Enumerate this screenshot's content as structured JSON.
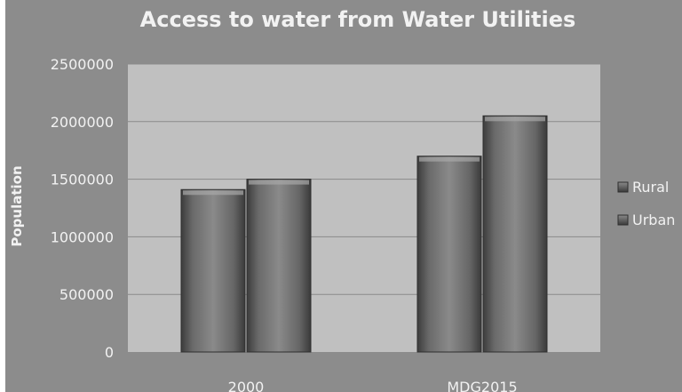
{
  "chart_data": {
    "type": "bar",
    "title": "Access to water from Water Utilities",
    "xlabel": "",
    "ylabel": "Population",
    "categories": [
      "2000",
      "MDG2015"
    ],
    "series": [
      {
        "name": "Rural",
        "values": [
          1410000,
          1700000
        ]
      },
      {
        "name": "Urban",
        "values": [
          1500000,
          2050000
        ]
      }
    ],
    "ylim": [
      0,
      2500000
    ],
    "yticks": [
      0,
      500000,
      1000000,
      1500000,
      2000000,
      2500000
    ],
    "grid": true,
    "legend": "right",
    "colors": {
      "background": "#8c8c8c",
      "plot_area": "#c0c0c0",
      "bar": "#7a7a7a",
      "text": "#f2f2f2"
    }
  }
}
